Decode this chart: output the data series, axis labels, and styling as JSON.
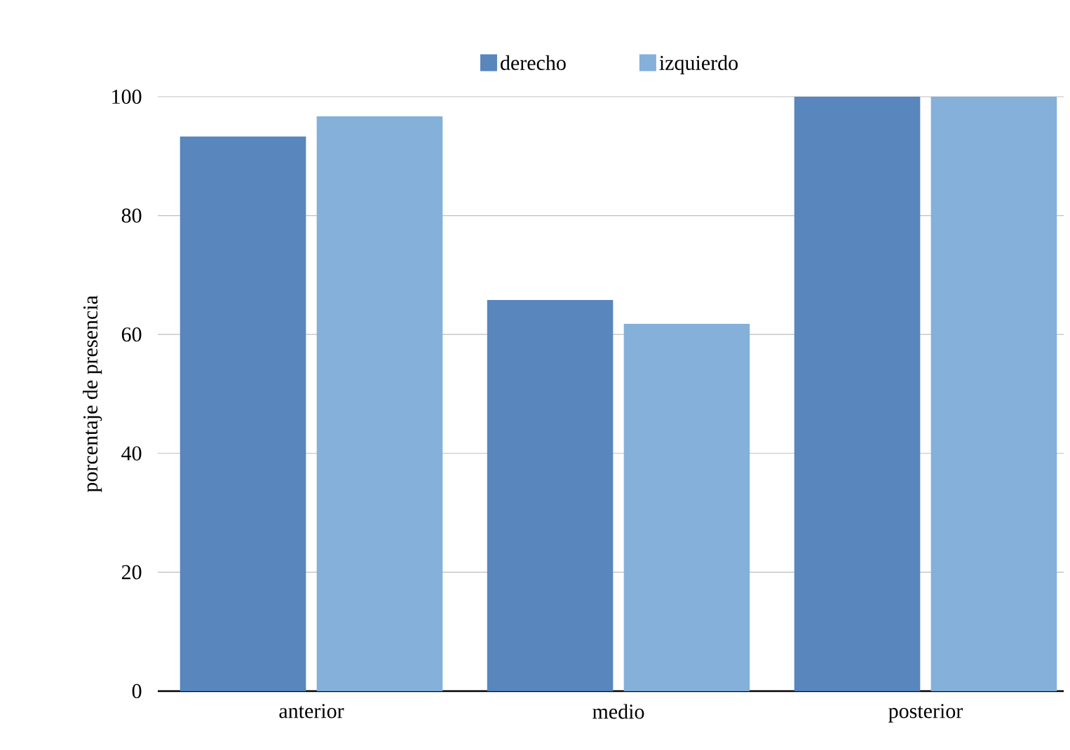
{
  "chart_data": {
    "type": "bar",
    "ylabel": "porcentaje de presencia",
    "categories": [
      "anterior",
      "medio",
      "posterior"
    ],
    "series": [
      {
        "name": "derecho",
        "color": "#5886bd",
        "values": [
          93.3,
          65.8,
          100
        ]
      },
      {
        "name": "izquierdo",
        "color": "#84b0da",
        "values": [
          96.7,
          61.8,
          100
        ]
      }
    ],
    "ylim": [
      0,
      100
    ],
    "yticks": [
      0,
      20,
      40,
      60,
      80,
      100
    ],
    "grid": "y",
    "legend": "top"
  }
}
